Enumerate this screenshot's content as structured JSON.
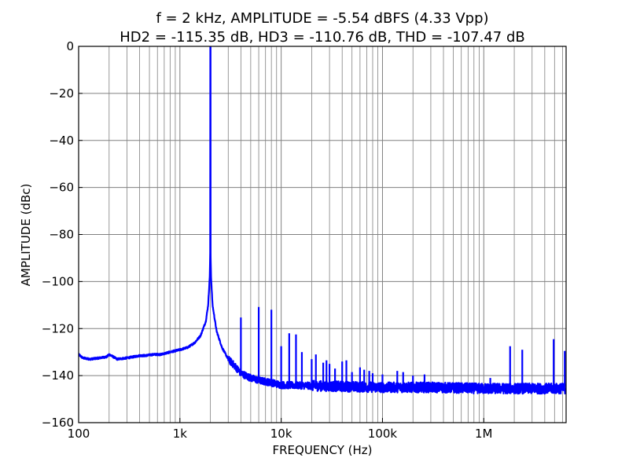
{
  "chart_data": {
    "type": "line",
    "title_line1": "f = 2 kHz, AMPLITUDE = -5.54 dBFS (4.33 Vpp)",
    "title_line2": "HD2 = -115.35 dB, HD3 = -110.76 dB, THD = -107.47 dB",
    "xlabel": "FREQUENCY (Hz)",
    "ylabel": "AMPLITUDE (dBc)",
    "x_scale": "log",
    "xlim": [
      100,
      6500000
    ],
    "ylim": [
      -160,
      0
    ],
    "grid": true,
    "x_ticks": [
      {
        "value": 100,
        "label": "100"
      },
      {
        "value": 1000,
        "label": "1k"
      },
      {
        "value": 10000,
        "label": "10k"
      },
      {
        "value": 100000,
        "label": "100k"
      },
      {
        "value": 1000000,
        "label": "1M"
      }
    ],
    "y_ticks": [
      {
        "value": 0,
        "label": "0"
      },
      {
        "value": -20,
        "label": "−20"
      },
      {
        "value": -40,
        "label": "−40"
      },
      {
        "value": -60,
        "label": "−60"
      },
      {
        "value": -80,
        "label": "−80"
      },
      {
        "value": -100,
        "label": "−100"
      },
      {
        "value": -120,
        "label": "−120"
      },
      {
        "value": -140,
        "label": "−140"
      },
      {
        "value": -160,
        "label": "−160"
      }
    ],
    "series": [
      {
        "color": "#0000ff",
        "fundamental_hz": 2000,
        "fundamental_db": 0,
        "noise_floor": [
          [
            100,
            -131
          ],
          [
            110,
            -132.5
          ],
          [
            130,
            -133
          ],
          [
            160,
            -132.5
          ],
          [
            190,
            -132
          ],
          [
            200,
            -131
          ],
          [
            210,
            -131.5
          ],
          [
            240,
            -133
          ],
          [
            300,
            -132.5
          ],
          [
            350,
            -132
          ],
          [
            400,
            -131.5
          ],
          [
            450,
            -131.5
          ],
          [
            550,
            -131
          ],
          [
            650,
            -131
          ],
          [
            800,
            -130
          ],
          [
            1000,
            -129
          ],
          [
            1200,
            -128
          ],
          [
            1400,
            -126
          ],
          [
            1600,
            -123
          ],
          [
            1800,
            -117
          ],
          [
            1900,
            -110
          ],
          [
            1970,
            -98
          ],
          [
            2000,
            -85
          ],
          [
            2030,
            -98
          ],
          [
            2100,
            -110
          ],
          [
            2300,
            -121
          ],
          [
            2600,
            -128
          ],
          [
            3000,
            -133
          ],
          [
            3500,
            -136
          ],
          [
            4000,
            -139
          ],
          [
            5000,
            -141
          ],
          [
            6000,
            -142
          ],
          [
            8000,
            -143
          ],
          [
            10000,
            -144
          ],
          [
            30000,
            -144.5
          ],
          [
            100000,
            -145
          ],
          [
            300000,
            -145
          ],
          [
            1000000,
            -145.5
          ],
          [
            6500000,
            -145.5
          ]
        ],
        "spurs": [
          {
            "f": 4000,
            "db": -115.3
          },
          {
            "f": 6000,
            "db": -110.8
          },
          {
            "f": 8000,
            "db": -112
          },
          {
            "f": 10000,
            "db": -127.5
          },
          {
            "f": 12000,
            "db": -122
          },
          {
            "f": 14000,
            "db": -122.5
          },
          {
            "f": 16000,
            "db": -130
          },
          {
            "f": 20000,
            "db": -133
          },
          {
            "f": 22000,
            "db": -131
          },
          {
            "f": 26000,
            "db": -134.5
          },
          {
            "f": 28000,
            "db": -133.5
          },
          {
            "f": 30000,
            "db": -135
          },
          {
            "f": 34000,
            "db": -137
          },
          {
            "f": 40000,
            "db": -134
          },
          {
            "f": 44000,
            "db": -133.5
          },
          {
            "f": 50000,
            "db": -138.5
          },
          {
            "f": 60000,
            "db": -136.5
          },
          {
            "f": 66000,
            "db": -137.5
          },
          {
            "f": 74000,
            "db": -138
          },
          {
            "f": 80000,
            "db": -139
          },
          {
            "f": 100000,
            "db": -139.5
          },
          {
            "f": 140000,
            "db": -138
          },
          {
            "f": 160000,
            "db": -138.5
          },
          {
            "f": 200000,
            "db": -140
          },
          {
            "f": 260000,
            "db": -139.5
          },
          {
            "f": 1160000,
            "db": -141
          },
          {
            "f": 1820000,
            "db": -127.5
          },
          {
            "f": 2400000,
            "db": -129
          },
          {
            "f": 4900000,
            "db": -124.5
          },
          {
            "f": 6300000,
            "db": -129.5
          }
        ]
      }
    ]
  }
}
